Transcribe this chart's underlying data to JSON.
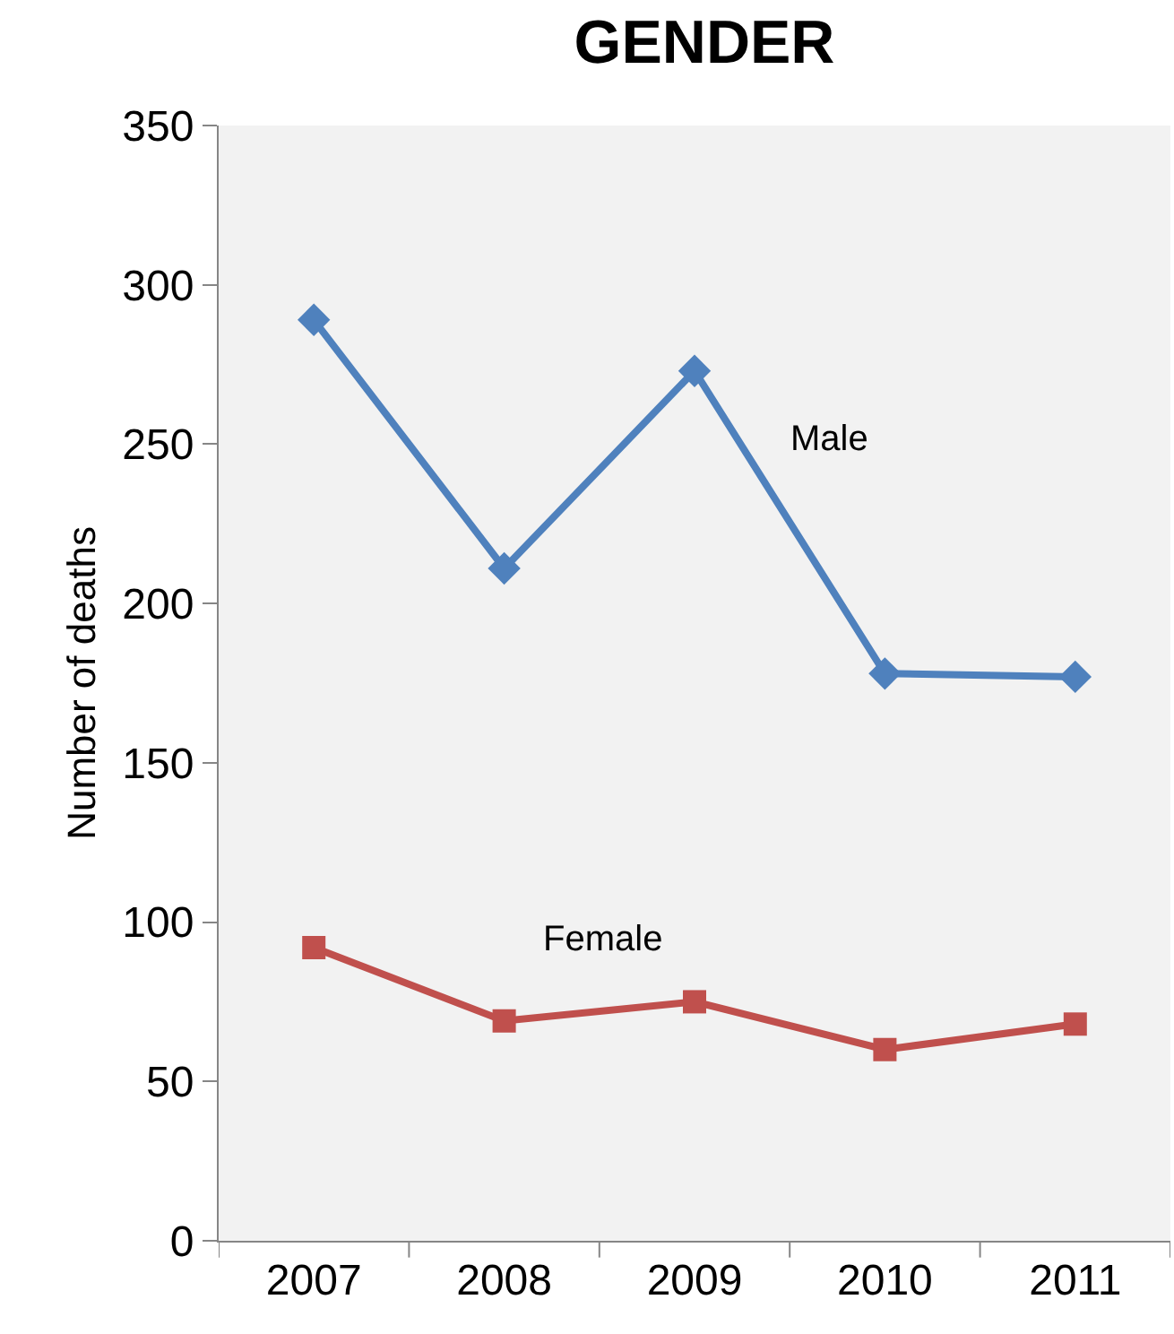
{
  "chart_data": {
    "type": "line",
    "title": "GENDER",
    "ylabel": "Number of deaths",
    "categories": [
      "2007",
      "2008",
      "2009",
      "2010",
      "2011"
    ],
    "series": [
      {
        "name": "Male",
        "color": "#4f81bd",
        "marker": "diamond",
        "values": [
          289,
          211,
          273,
          178,
          177
        ]
      },
      {
        "name": "Female",
        "color": "#c0504d",
        "marker": "square",
        "values": [
          92,
          69,
          75,
          60,
          68
        ]
      }
    ],
    "ylim": [
      0,
      350
    ],
    "yticks": [
      0,
      50,
      100,
      150,
      200,
      250,
      300,
      350
    ],
    "grid": false,
    "legend": false,
    "line_style": "solid"
  }
}
